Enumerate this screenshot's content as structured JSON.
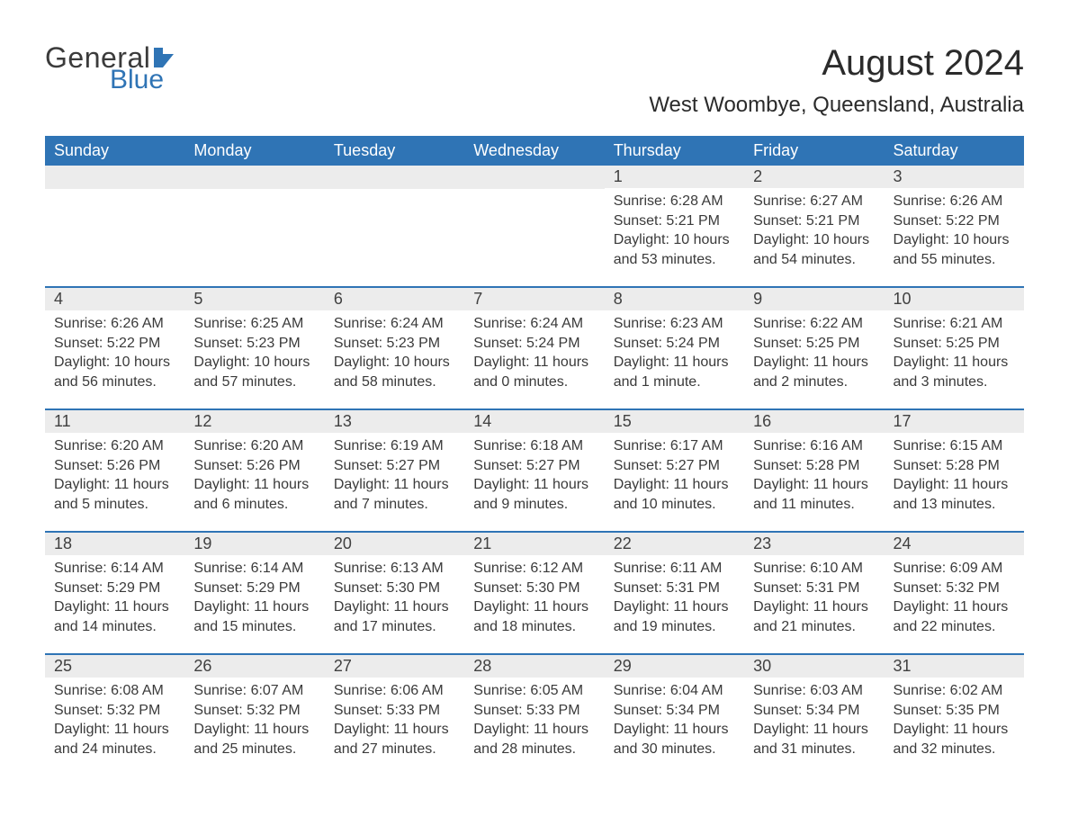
{
  "logo": {
    "word1": "General",
    "word2": "Blue",
    "icon_color": "#2f74b5"
  },
  "title": "August 2024",
  "location": "West Woombye, Queensland, Australia",
  "colors": {
    "header_bg": "#2f74b5",
    "header_text": "#ffffff",
    "daynum_bg": "#ececec",
    "border": "#2f74b5",
    "text": "#333333"
  },
  "weekdays": [
    "Sunday",
    "Monday",
    "Tuesday",
    "Wednesday",
    "Thursday",
    "Friday",
    "Saturday"
  ],
  "weeks": [
    [
      null,
      null,
      null,
      null,
      {
        "d": "1",
        "sr": "Sunrise: 6:28 AM",
        "ss": "Sunset: 5:21 PM",
        "dl1": "Daylight: 10 hours",
        "dl2": "and 53 minutes."
      },
      {
        "d": "2",
        "sr": "Sunrise: 6:27 AM",
        "ss": "Sunset: 5:21 PM",
        "dl1": "Daylight: 10 hours",
        "dl2": "and 54 minutes."
      },
      {
        "d": "3",
        "sr": "Sunrise: 6:26 AM",
        "ss": "Sunset: 5:22 PM",
        "dl1": "Daylight: 10 hours",
        "dl2": "and 55 minutes."
      }
    ],
    [
      {
        "d": "4",
        "sr": "Sunrise: 6:26 AM",
        "ss": "Sunset: 5:22 PM",
        "dl1": "Daylight: 10 hours",
        "dl2": "and 56 minutes."
      },
      {
        "d": "5",
        "sr": "Sunrise: 6:25 AM",
        "ss": "Sunset: 5:23 PM",
        "dl1": "Daylight: 10 hours",
        "dl2": "and 57 minutes."
      },
      {
        "d": "6",
        "sr": "Sunrise: 6:24 AM",
        "ss": "Sunset: 5:23 PM",
        "dl1": "Daylight: 10 hours",
        "dl2": "and 58 minutes."
      },
      {
        "d": "7",
        "sr": "Sunrise: 6:24 AM",
        "ss": "Sunset: 5:24 PM",
        "dl1": "Daylight: 11 hours",
        "dl2": "and 0 minutes."
      },
      {
        "d": "8",
        "sr": "Sunrise: 6:23 AM",
        "ss": "Sunset: 5:24 PM",
        "dl1": "Daylight: 11 hours",
        "dl2": "and 1 minute."
      },
      {
        "d": "9",
        "sr": "Sunrise: 6:22 AM",
        "ss": "Sunset: 5:25 PM",
        "dl1": "Daylight: 11 hours",
        "dl2": "and 2 minutes."
      },
      {
        "d": "10",
        "sr": "Sunrise: 6:21 AM",
        "ss": "Sunset: 5:25 PM",
        "dl1": "Daylight: 11 hours",
        "dl2": "and 3 minutes."
      }
    ],
    [
      {
        "d": "11",
        "sr": "Sunrise: 6:20 AM",
        "ss": "Sunset: 5:26 PM",
        "dl1": "Daylight: 11 hours",
        "dl2": "and 5 minutes."
      },
      {
        "d": "12",
        "sr": "Sunrise: 6:20 AM",
        "ss": "Sunset: 5:26 PM",
        "dl1": "Daylight: 11 hours",
        "dl2": "and 6 minutes."
      },
      {
        "d": "13",
        "sr": "Sunrise: 6:19 AM",
        "ss": "Sunset: 5:27 PM",
        "dl1": "Daylight: 11 hours",
        "dl2": "and 7 minutes."
      },
      {
        "d": "14",
        "sr": "Sunrise: 6:18 AM",
        "ss": "Sunset: 5:27 PM",
        "dl1": "Daylight: 11 hours",
        "dl2": "and 9 minutes."
      },
      {
        "d": "15",
        "sr": "Sunrise: 6:17 AM",
        "ss": "Sunset: 5:27 PM",
        "dl1": "Daylight: 11 hours",
        "dl2": "and 10 minutes."
      },
      {
        "d": "16",
        "sr": "Sunrise: 6:16 AM",
        "ss": "Sunset: 5:28 PM",
        "dl1": "Daylight: 11 hours",
        "dl2": "and 11 minutes."
      },
      {
        "d": "17",
        "sr": "Sunrise: 6:15 AM",
        "ss": "Sunset: 5:28 PM",
        "dl1": "Daylight: 11 hours",
        "dl2": "and 13 minutes."
      }
    ],
    [
      {
        "d": "18",
        "sr": "Sunrise: 6:14 AM",
        "ss": "Sunset: 5:29 PM",
        "dl1": "Daylight: 11 hours",
        "dl2": "and 14 minutes."
      },
      {
        "d": "19",
        "sr": "Sunrise: 6:14 AM",
        "ss": "Sunset: 5:29 PM",
        "dl1": "Daylight: 11 hours",
        "dl2": "and 15 minutes."
      },
      {
        "d": "20",
        "sr": "Sunrise: 6:13 AM",
        "ss": "Sunset: 5:30 PM",
        "dl1": "Daylight: 11 hours",
        "dl2": "and 17 minutes."
      },
      {
        "d": "21",
        "sr": "Sunrise: 6:12 AM",
        "ss": "Sunset: 5:30 PM",
        "dl1": "Daylight: 11 hours",
        "dl2": "and 18 minutes."
      },
      {
        "d": "22",
        "sr": "Sunrise: 6:11 AM",
        "ss": "Sunset: 5:31 PM",
        "dl1": "Daylight: 11 hours",
        "dl2": "and 19 minutes."
      },
      {
        "d": "23",
        "sr": "Sunrise: 6:10 AM",
        "ss": "Sunset: 5:31 PM",
        "dl1": "Daylight: 11 hours",
        "dl2": "and 21 minutes."
      },
      {
        "d": "24",
        "sr": "Sunrise: 6:09 AM",
        "ss": "Sunset: 5:32 PM",
        "dl1": "Daylight: 11 hours",
        "dl2": "and 22 minutes."
      }
    ],
    [
      {
        "d": "25",
        "sr": "Sunrise: 6:08 AM",
        "ss": "Sunset: 5:32 PM",
        "dl1": "Daylight: 11 hours",
        "dl2": "and 24 minutes."
      },
      {
        "d": "26",
        "sr": "Sunrise: 6:07 AM",
        "ss": "Sunset: 5:32 PM",
        "dl1": "Daylight: 11 hours",
        "dl2": "and 25 minutes."
      },
      {
        "d": "27",
        "sr": "Sunrise: 6:06 AM",
        "ss": "Sunset: 5:33 PM",
        "dl1": "Daylight: 11 hours",
        "dl2": "and 27 minutes."
      },
      {
        "d": "28",
        "sr": "Sunrise: 6:05 AM",
        "ss": "Sunset: 5:33 PM",
        "dl1": "Daylight: 11 hours",
        "dl2": "and 28 minutes."
      },
      {
        "d": "29",
        "sr": "Sunrise: 6:04 AM",
        "ss": "Sunset: 5:34 PM",
        "dl1": "Daylight: 11 hours",
        "dl2": "and 30 minutes."
      },
      {
        "d": "30",
        "sr": "Sunrise: 6:03 AM",
        "ss": "Sunset: 5:34 PM",
        "dl1": "Daylight: 11 hours",
        "dl2": "and 31 minutes."
      },
      {
        "d": "31",
        "sr": "Sunrise: 6:02 AM",
        "ss": "Sunset: 5:35 PM",
        "dl1": "Daylight: 11 hours",
        "dl2": "and 32 minutes."
      }
    ]
  ]
}
